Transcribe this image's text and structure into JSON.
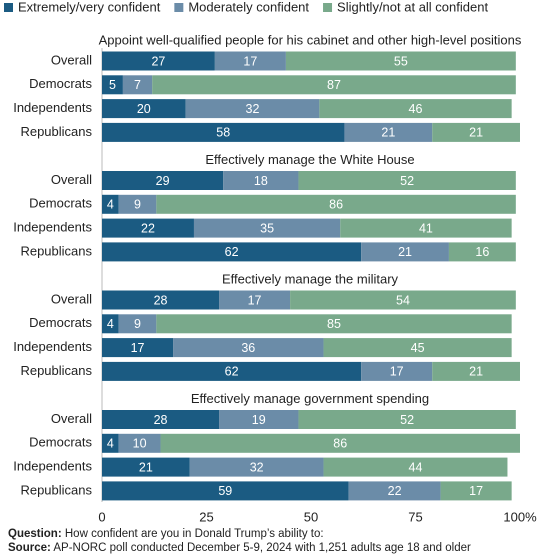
{
  "chart_data": {
    "type": "bar",
    "orientation": "horizontal",
    "stacked": true,
    "series": [
      {
        "name": "Extremely/very confident",
        "color": "#1b5b82"
      },
      {
        "name": "Moderately confident",
        "color": "#6b8ca8"
      },
      {
        "name": "Slightly/not at all confident",
        "color": "#79a98b"
      }
    ],
    "xlim": [
      0,
      100
    ],
    "xticks": [
      0,
      25,
      50,
      75,
      {
        "value": 100,
        "label": "100%"
      }
    ],
    "panels": [
      {
        "title": "Appoint well-qualified people for his cabinet and other high-level positions",
        "categories": [
          "Overall",
          "Democrats",
          "Independents",
          "Republicans"
        ],
        "series": [
          {
            "values": [
              27,
              5,
              20,
              58
            ]
          },
          {
            "values": [
              17,
              7,
              32,
              21
            ]
          },
          {
            "values": [
              55,
              87,
              46,
              21
            ]
          }
        ]
      },
      {
        "title": "Effectively manage the White House",
        "categories": [
          "Overall",
          "Democrats",
          "Independents",
          "Republicans"
        ],
        "series": [
          {
            "values": [
              29,
              4,
              22,
              62
            ]
          },
          {
            "values": [
              18,
              9,
              35,
              21
            ]
          },
          {
            "values": [
              52,
              86,
              41,
              16
            ]
          }
        ]
      },
      {
        "title": "Effectively manage the military",
        "categories": [
          "Overall",
          "Democrats",
          "Independents",
          "Republicans"
        ],
        "series": [
          {
            "values": [
              28,
              4,
              17,
              62
            ]
          },
          {
            "values": [
              17,
              9,
              36,
              17
            ]
          },
          {
            "values": [
              54,
              85,
              45,
              21
            ]
          }
        ]
      },
      {
        "title": "Effectively manage government spending",
        "categories": [
          "Overall",
          "Democrats",
          "Independents",
          "Republicans"
        ],
        "series": [
          {
            "values": [
              28,
              4,
              21,
              59
            ]
          },
          {
            "values": [
              19,
              10,
              32,
              22
            ]
          },
          {
            "values": [
              52,
              86,
              44,
              17
            ]
          }
        ]
      }
    ]
  },
  "footer": {
    "question_label": "Question:",
    "question": "How confident are you in Donald Trump’s ability to:",
    "source_label": "Source:",
    "source": "AP-NORC poll conducted December 5-9, 2024 with 1,251 adults age 18 and older"
  }
}
